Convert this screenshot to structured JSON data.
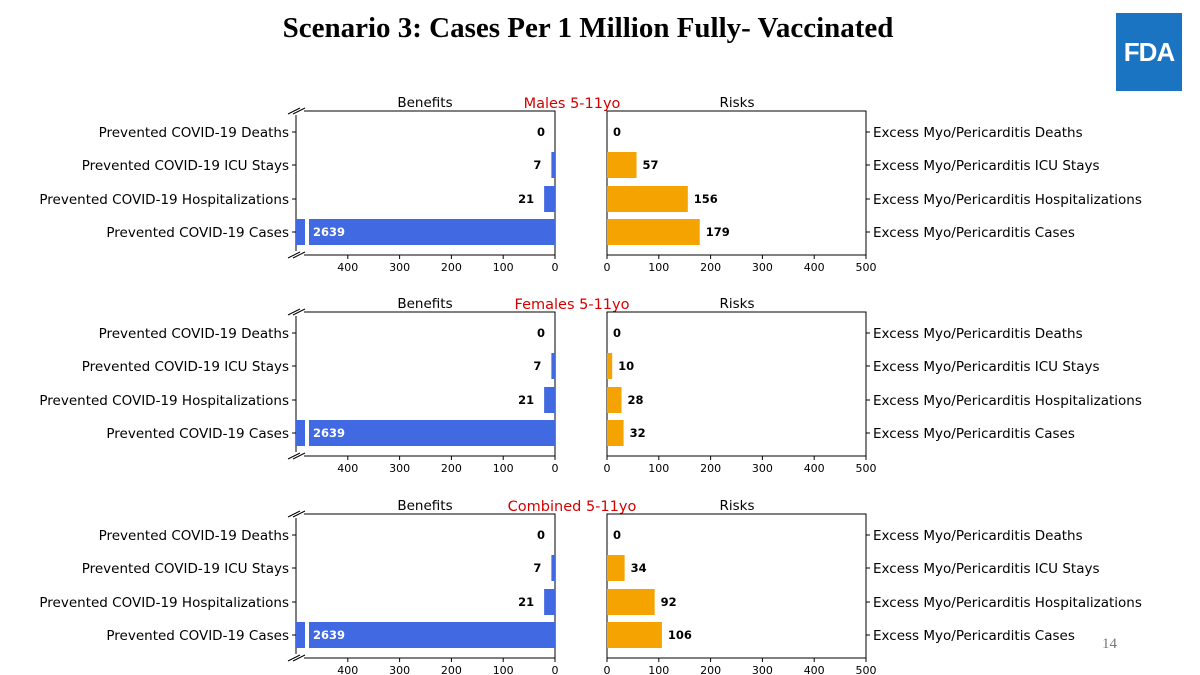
{
  "slide": {
    "title": "Scenario 3: Cases Per 1 Million Fully- Vaccinated",
    "logo_text": "FDA",
    "page_number": "14"
  },
  "colors": {
    "benefit": "#4169e1",
    "risk": "#f5a300",
    "panel_title": "#d40000",
    "logo_bg": "#1b74c1"
  },
  "chart_data": [
    {
      "type": "bar",
      "title": "Males 5-11yo",
      "benefits_label": "Benefits",
      "risks_label": "Risks",
      "benefit_categories": [
        "Prevented COVID-19 Deaths",
        "Prevented COVID-19 ICU Stays",
        "Prevented COVID-19 Hospitalizations",
        "Prevented COVID-19 Cases"
      ],
      "benefit_values": [
        0,
        7,
        21,
        2639
      ],
      "risk_categories": [
        "Excess Myo/Pericarditis Deaths",
        "Excess Myo/Pericarditis ICU Stays",
        "Excess Myo/Pericarditis Hospitalizations",
        "Excess Myo/Pericarditis Cases"
      ],
      "risk_values": [
        0,
        57,
        156,
        179
      ],
      "benefit_ticks": [
        "400",
        "300",
        "200",
        "100",
        "0"
      ],
      "risk_ticks": [
        "0",
        "100",
        "200",
        "300",
        "400",
        "500"
      ],
      "benefit_xlim": [
        0,
        500
      ],
      "risk_xlim": [
        0,
        500
      ],
      "axis_break": true
    },
    {
      "type": "bar",
      "title": "Females 5-11yo",
      "benefits_label": "Benefits",
      "risks_label": "Risks",
      "benefit_categories": [
        "Prevented COVID-19 Deaths",
        "Prevented COVID-19 ICU Stays",
        "Prevented COVID-19 Hospitalizations",
        "Prevented COVID-19 Cases"
      ],
      "benefit_values": [
        0,
        7,
        21,
        2639
      ],
      "risk_categories": [
        "Excess Myo/Pericarditis Deaths",
        "Excess Myo/Pericarditis ICU Stays",
        "Excess Myo/Pericarditis Hospitalizations",
        "Excess Myo/Pericarditis Cases"
      ],
      "risk_values": [
        0,
        10,
        28,
        32
      ],
      "benefit_ticks": [
        "400",
        "300",
        "200",
        "100",
        "0"
      ],
      "risk_ticks": [
        "0",
        "100",
        "200",
        "300",
        "400",
        "500"
      ],
      "benefit_xlim": [
        0,
        500
      ],
      "risk_xlim": [
        0,
        500
      ],
      "axis_break": true
    },
    {
      "type": "bar",
      "title": "Combined 5-11yo",
      "benefits_label": "Benefits",
      "risks_label": "Risks",
      "benefit_categories": [
        "Prevented COVID-19 Deaths",
        "Prevented COVID-19 ICU Stays",
        "Prevented COVID-19 Hospitalizations",
        "Prevented COVID-19 Cases"
      ],
      "benefit_values": [
        0,
        7,
        21,
        2639
      ],
      "risk_categories": [
        "Excess Myo/Pericarditis Deaths",
        "Excess Myo/Pericarditis ICU Stays",
        "Excess Myo/Pericarditis Hospitalizations",
        "Excess Myo/Pericarditis Cases"
      ],
      "risk_values": [
        0,
        34,
        92,
        106
      ],
      "benefit_ticks": [
        "400",
        "300",
        "200",
        "100",
        "0"
      ],
      "risk_ticks": [
        "0",
        "100",
        "200",
        "300",
        "400",
        "500"
      ],
      "benefit_xlim": [
        0,
        500
      ],
      "risk_xlim": [
        0,
        500
      ],
      "axis_break": true
    }
  ]
}
